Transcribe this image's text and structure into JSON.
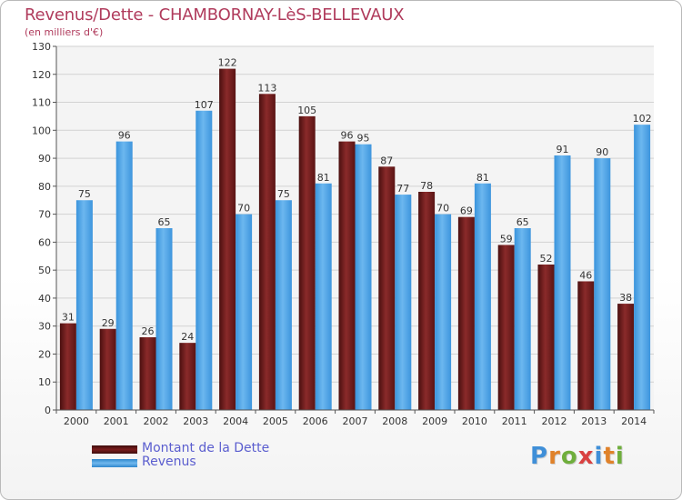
{
  "title": "Revenus/Dette - CHAMBORNAY-LèS-BELLEVAUX",
  "subtitle": "(en milliers d'€)",
  "logo_text": "Proxiti",
  "colors": {
    "dette": "#7a1c1c",
    "revenus": "#4aa3e6",
    "title": "#b03b5c",
    "legend_text": "#5b5ecf"
  },
  "chart_data": {
    "type": "bar",
    "categories": [
      "2000",
      "2001",
      "2002",
      "2003",
      "2004",
      "2005",
      "2006",
      "2007",
      "2008",
      "2009",
      "2010",
      "2011",
      "2012",
      "2013",
      "2014"
    ],
    "series": [
      {
        "name": "Montant de la Dette",
        "values": [
          31,
          29,
          26,
          24,
          122,
          113,
          105,
          96,
          87,
          78,
          69,
          59,
          52,
          46,
          38
        ]
      },
      {
        "name": "Revenus",
        "values": [
          75,
          96,
          65,
          107,
          70,
          75,
          81,
          95,
          77,
          70,
          81,
          65,
          91,
          90,
          102
        ]
      }
    ],
    "ylim": [
      0,
      130
    ],
    "yticks": [
      0,
      10,
      20,
      30,
      40,
      50,
      60,
      70,
      80,
      90,
      100,
      110,
      120,
      130
    ],
    "grid": true,
    "legend_position": "bottom-left"
  }
}
